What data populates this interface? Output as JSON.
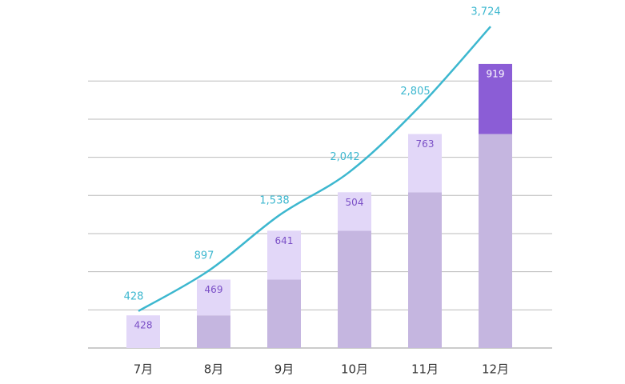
{
  "chart_data": {
    "type": "bar",
    "categories": [
      "7月",
      "8月",
      "9月",
      "10月",
      "11月",
      "12月"
    ],
    "series": [
      {
        "color": "#c5b6e0",
        "values": [
          null,
          428,
          897,
          1538,
          2042,
          2805
        ]
      },
      {
        "colors": [
          "#e2d7f8",
          "#e2d7f8",
          "#e2d7f8",
          "#e2d7f8",
          "#e2d7f8",
          "#8b5dd6"
        ],
        "values": [
          428,
          469,
          641,
          504,
          763,
          919
        ]
      },
      {
        "type": "line",
        "axis": "y2",
        "color": "#3cb7cf",
        "values": [
          428,
          897,
          1538,
          2042,
          2805,
          3724
        ]
      }
    ],
    "ylim": [
      0,
      4300
    ],
    "yticks": [
      0,
      500,
      1000,
      1500,
      2000,
      2500,
      3000,
      3500
    ],
    "y2lim": [
      0,
      3800
    ],
    "grid": true
  }
}
